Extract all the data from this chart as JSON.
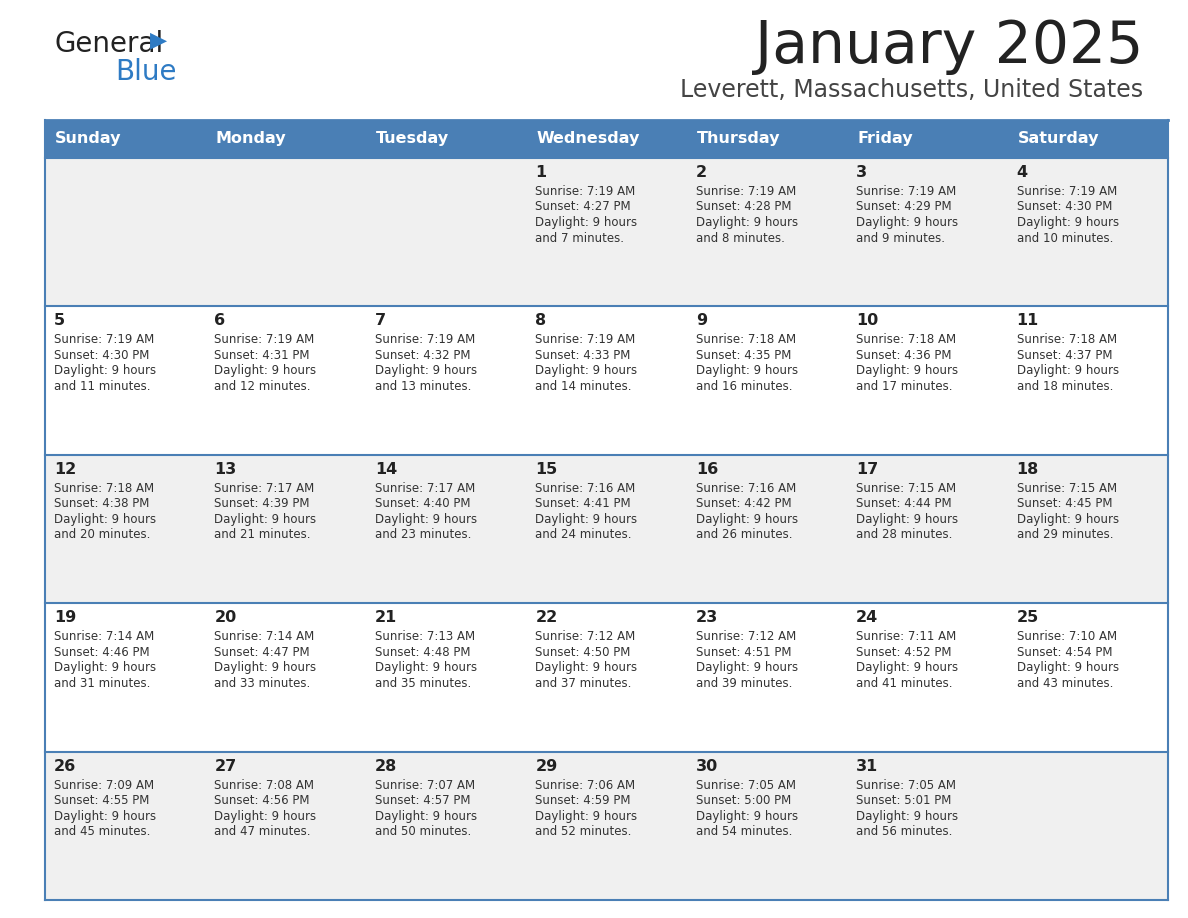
{
  "title": "January 2025",
  "subtitle": "Leverett, Massachusetts, United States",
  "days_of_week": [
    "Sunday",
    "Monday",
    "Tuesday",
    "Wednesday",
    "Thursday",
    "Friday",
    "Saturday"
  ],
  "header_bg": "#4a7fb5",
  "header_text": "#ffffff",
  "row_bg_odd": "#f0f0f0",
  "row_bg_even": "#ffffff",
  "cell_border_color": "#4a7fb5",
  "day_num_color": "#222222",
  "text_color": "#333333",
  "title_color": "#222222",
  "subtitle_color": "#444444",
  "logo_general_color": "#222222",
  "logo_blue_color": "#2e7bc4",
  "calendar_data": [
    [
      {
        "day": null,
        "sunrise": null,
        "sunset": null,
        "daylight": null
      },
      {
        "day": null,
        "sunrise": null,
        "sunset": null,
        "daylight": null
      },
      {
        "day": null,
        "sunrise": null,
        "sunset": null,
        "daylight": null
      },
      {
        "day": 1,
        "sunrise": "7:19 AM",
        "sunset": "4:27 PM",
        "daylight": "9 hours and 7 minutes."
      },
      {
        "day": 2,
        "sunrise": "7:19 AM",
        "sunset": "4:28 PM",
        "daylight": "9 hours and 8 minutes."
      },
      {
        "day": 3,
        "sunrise": "7:19 AM",
        "sunset": "4:29 PM",
        "daylight": "9 hours and 9 minutes."
      },
      {
        "day": 4,
        "sunrise": "7:19 AM",
        "sunset": "4:30 PM",
        "daylight": "9 hours and 10 minutes."
      }
    ],
    [
      {
        "day": 5,
        "sunrise": "7:19 AM",
        "sunset": "4:30 PM",
        "daylight": "9 hours and 11 minutes."
      },
      {
        "day": 6,
        "sunrise": "7:19 AM",
        "sunset": "4:31 PM",
        "daylight": "9 hours and 12 minutes."
      },
      {
        "day": 7,
        "sunrise": "7:19 AM",
        "sunset": "4:32 PM",
        "daylight": "9 hours and 13 minutes."
      },
      {
        "day": 8,
        "sunrise": "7:19 AM",
        "sunset": "4:33 PM",
        "daylight": "9 hours and 14 minutes."
      },
      {
        "day": 9,
        "sunrise": "7:18 AM",
        "sunset": "4:35 PM",
        "daylight": "9 hours and 16 minutes."
      },
      {
        "day": 10,
        "sunrise": "7:18 AM",
        "sunset": "4:36 PM",
        "daylight": "9 hours and 17 minutes."
      },
      {
        "day": 11,
        "sunrise": "7:18 AM",
        "sunset": "4:37 PM",
        "daylight": "9 hours and 18 minutes."
      }
    ],
    [
      {
        "day": 12,
        "sunrise": "7:18 AM",
        "sunset": "4:38 PM",
        "daylight": "9 hours and 20 minutes."
      },
      {
        "day": 13,
        "sunrise": "7:17 AM",
        "sunset": "4:39 PM",
        "daylight": "9 hours and 21 minutes."
      },
      {
        "day": 14,
        "sunrise": "7:17 AM",
        "sunset": "4:40 PM",
        "daylight": "9 hours and 23 minutes."
      },
      {
        "day": 15,
        "sunrise": "7:16 AM",
        "sunset": "4:41 PM",
        "daylight": "9 hours and 24 minutes."
      },
      {
        "day": 16,
        "sunrise": "7:16 AM",
        "sunset": "4:42 PM",
        "daylight": "9 hours and 26 minutes."
      },
      {
        "day": 17,
        "sunrise": "7:15 AM",
        "sunset": "4:44 PM",
        "daylight": "9 hours and 28 minutes."
      },
      {
        "day": 18,
        "sunrise": "7:15 AM",
        "sunset": "4:45 PM",
        "daylight": "9 hours and 29 minutes."
      }
    ],
    [
      {
        "day": 19,
        "sunrise": "7:14 AM",
        "sunset": "4:46 PM",
        "daylight": "9 hours and 31 minutes."
      },
      {
        "day": 20,
        "sunrise": "7:14 AM",
        "sunset": "4:47 PM",
        "daylight": "9 hours and 33 minutes."
      },
      {
        "day": 21,
        "sunrise": "7:13 AM",
        "sunset": "4:48 PM",
        "daylight": "9 hours and 35 minutes."
      },
      {
        "day": 22,
        "sunrise": "7:12 AM",
        "sunset": "4:50 PM",
        "daylight": "9 hours and 37 minutes."
      },
      {
        "day": 23,
        "sunrise": "7:12 AM",
        "sunset": "4:51 PM",
        "daylight": "9 hours and 39 minutes."
      },
      {
        "day": 24,
        "sunrise": "7:11 AM",
        "sunset": "4:52 PM",
        "daylight": "9 hours and 41 minutes."
      },
      {
        "day": 25,
        "sunrise": "7:10 AM",
        "sunset": "4:54 PM",
        "daylight": "9 hours and 43 minutes."
      }
    ],
    [
      {
        "day": 26,
        "sunrise": "7:09 AM",
        "sunset": "4:55 PM",
        "daylight": "9 hours and 45 minutes."
      },
      {
        "day": 27,
        "sunrise": "7:08 AM",
        "sunset": "4:56 PM",
        "daylight": "9 hours and 47 minutes."
      },
      {
        "day": 28,
        "sunrise": "7:07 AM",
        "sunset": "4:57 PM",
        "daylight": "9 hours and 50 minutes."
      },
      {
        "day": 29,
        "sunrise": "7:06 AM",
        "sunset": "4:59 PM",
        "daylight": "9 hours and 52 minutes."
      },
      {
        "day": 30,
        "sunrise": "7:05 AM",
        "sunset": "5:00 PM",
        "daylight": "9 hours and 54 minutes."
      },
      {
        "day": 31,
        "sunrise": "7:05 AM",
        "sunset": "5:01 PM",
        "daylight": "9 hours and 56 minutes."
      },
      {
        "day": null,
        "sunrise": null,
        "sunset": null,
        "daylight": null
      }
    ]
  ]
}
